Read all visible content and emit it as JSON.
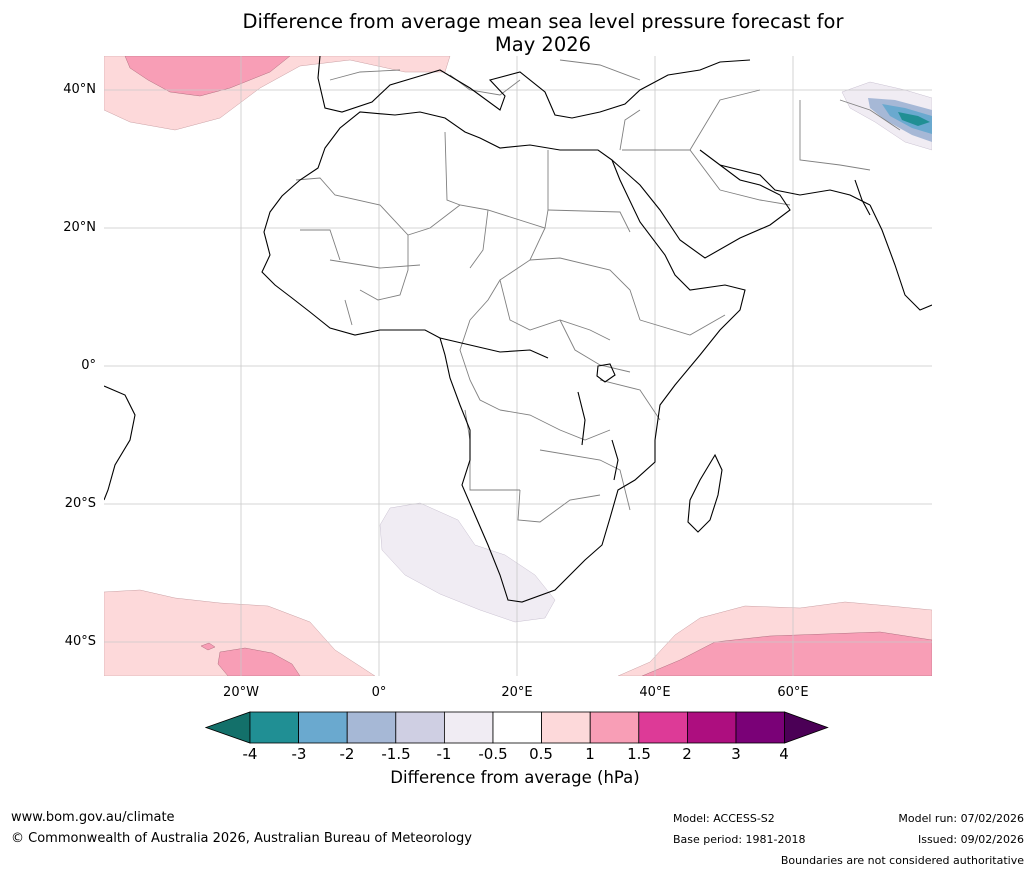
{
  "title_line1": "Difference from average mean sea level pressure forecast for",
  "title_line2": "May 2026",
  "map": {
    "lat_labels": [
      "40°N",
      "20°N",
      "0°",
      "20°S",
      "40°S"
    ],
    "lon_labels": [
      "20°W",
      "0°",
      "20°E",
      "40°E",
      "60°E"
    ]
  },
  "colorbar": {
    "ticks": [
      "-4",
      "-3",
      "-2",
      "-1.5",
      "-1",
      "-0.5",
      "0.5",
      "1",
      "1.5",
      "2",
      "3",
      "4"
    ],
    "colors": [
      "#13706a",
      "#208f94",
      "#6aa9cf",
      "#a6b8d6",
      "#cfcfe3",
      "#f0ecf3",
      "#ffffff",
      "#fdd9da",
      "#f89eb6",
      "#dd3a97",
      "#ad0e7f",
      "#7a0177",
      "#4b0056"
    ],
    "label": "Difference from average (hPa)"
  },
  "footer": {
    "website": "www.bom.gov.au/climate",
    "copyright": "© Commonwealth of Australia 2026, Australian Bureau of Meteorology",
    "model": "Model: ACCESS-S2",
    "base_period": "Base period: 1981-2018",
    "model_run": "Model run: 07/02/2026",
    "issued": "Issued: 09/02/2026",
    "disclaimer": "Boundaries are not considered authoritative"
  }
}
